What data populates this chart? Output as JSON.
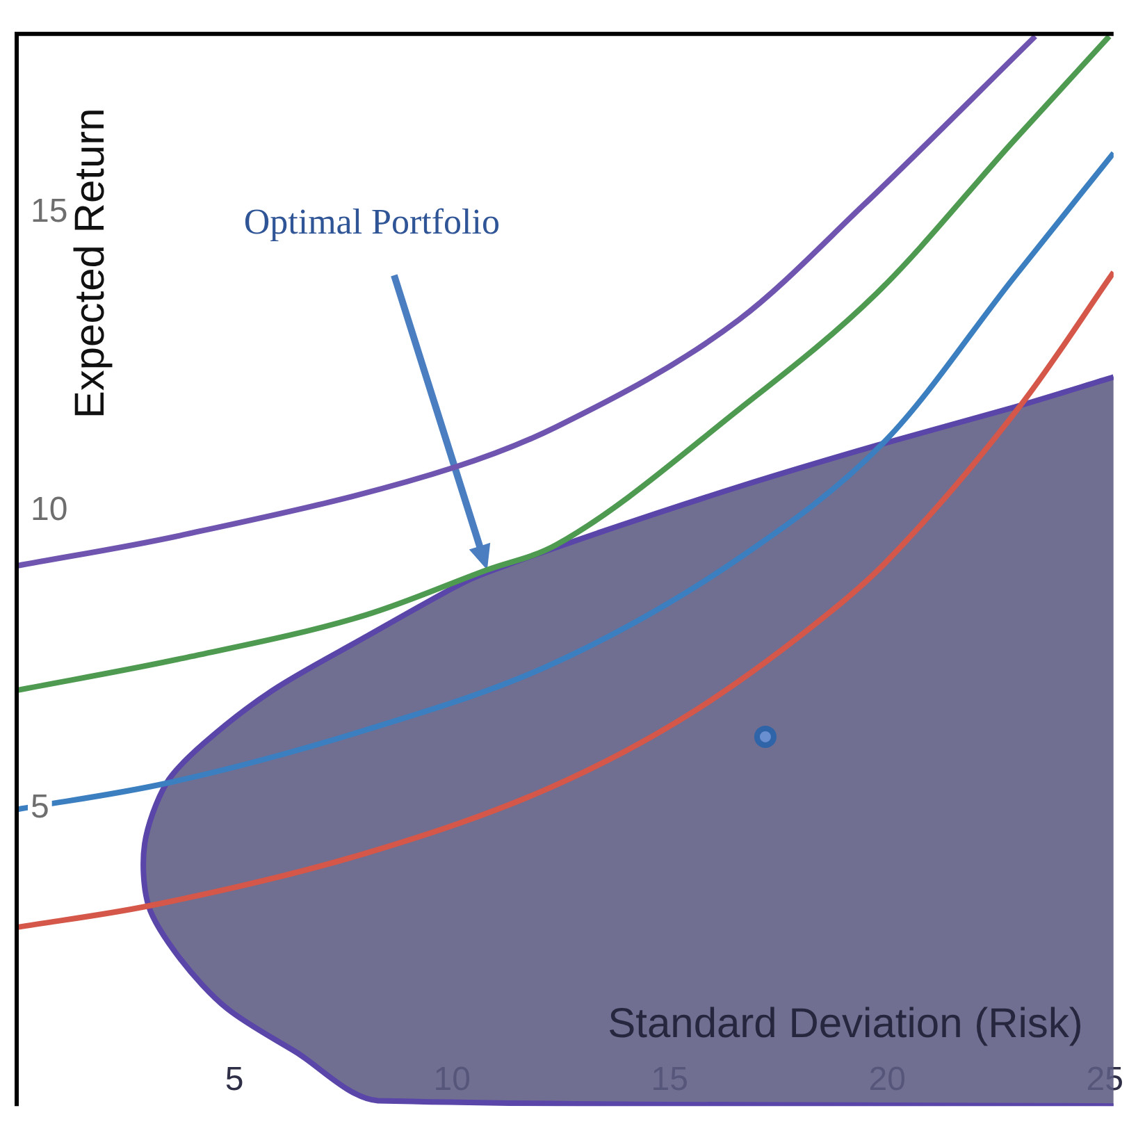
{
  "chart_data": {
    "type": "line",
    "xlabel": "Standard Deviation (Risk)",
    "ylabel": "Expected Return",
    "xlim": [
      0,
      25.2
    ],
    "ylim": [
      0,
      18
    ],
    "xticks": [
      5,
      10,
      15,
      20,
      25
    ],
    "yticks": [
      5,
      10,
      15
    ],
    "annotations": [
      "Optimal Portfolio"
    ],
    "series": [
      {
        "type": "line",
        "color": "#d5574a",
        "x": [
          0,
          3.03,
          8.0,
          12.3,
          15.5,
          18.7,
          19.97,
          23.1,
          25.2
        ],
        "values": [
          3.0,
          3.36,
          4.24,
          5.36,
          6.6,
          8.3,
          9.13,
          11.8,
          14.0
        ]
      },
      {
        "type": "line",
        "color": "#3b7fc0",
        "x": [
          0,
          3.44,
          8.0,
          12.3,
          16.6,
          19.97,
          22.9,
          25.2
        ],
        "values": [
          4.98,
          5.42,
          6.31,
          7.42,
          9.2,
          11.18,
          13.9,
          16.0
        ]
      },
      {
        "type": "line",
        "color": "#4d9a50",
        "x": [
          0,
          3.76,
          8.0,
          10.8,
          12.39,
          16.6,
          19.75,
          22.9,
          25.1
        ],
        "values": [
          6.98,
          7.51,
          8.24,
          9.0,
          9.42,
          11.7,
          13.64,
          16.2,
          17.96
        ]
      },
      {
        "type": "line",
        "color": "#6f55b0",
        "x": [
          0,
          3.76,
          10.08,
          12.39,
          16.59,
          19.46,
          23.4
        ],
        "values": [
          9.07,
          9.58,
          10.73,
          11.4,
          13.2,
          15.13,
          17.96
        ]
      },
      {
        "type": "area",
        "color": "#5c5b82",
        "x": [
          25.2,
          22.9,
          19.75,
          16.6,
          13.43,
          10.77,
          10.08,
          8.0,
          5.88,
          4.3,
          3.44,
          2.94,
          3.03,
          3.76,
          4.83,
          6.41,
          8.3,
          25.2
        ],
        "values": [
          12.24,
          11.73,
          11.09,
          10.4,
          9.64,
          8.95,
          8.72,
          7.87,
          6.98,
          6.09,
          5.42,
          4.4,
          3.36,
          2.47,
          1.64,
          0.91,
          0.09,
          0
        ]
      },
      {
        "type": "scatter",
        "color": "#2f64a8",
        "marker": "circle",
        "x": [
          17.2
        ],
        "values": [
          6.2
        ]
      }
    ]
  }
}
